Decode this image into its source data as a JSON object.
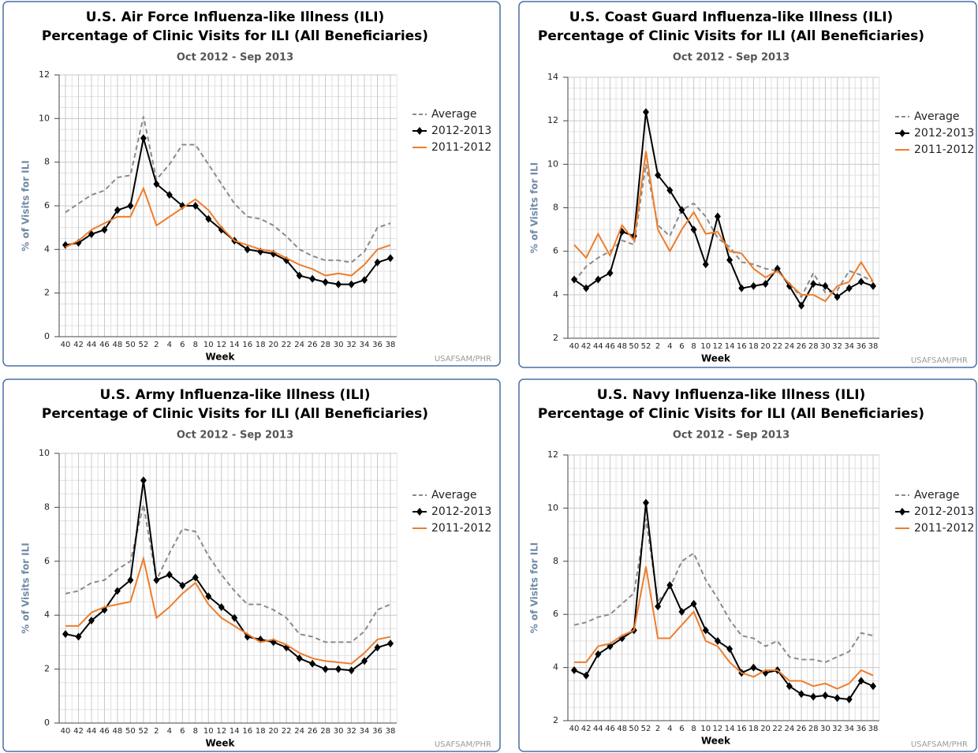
{
  "chart_data": [
    {
      "type": "line",
      "title": [
        "U.S. Air Force Influenza-like Illness (ILI)",
        "Percentage of Clinic Visits for ILI (All Beneficiaries)"
      ],
      "period": "Oct 2012 - Sep 2013",
      "x_label": "Week",
      "y_label": "% of Visits for ILI",
      "credit": "USAFSAM/PHR",
      "categories": [
        "40",
        "42",
        "44",
        "46",
        "48",
        "50",
        "52",
        "2",
        "4",
        "6",
        "8",
        "10",
        "12",
        "14",
        "16",
        "18",
        "20",
        "22",
        "24",
        "26",
        "28",
        "30",
        "32",
        "34",
        "36",
        "38"
      ],
      "ylim": [
        0,
        12
      ],
      "yticks": [
        0,
        2,
        4,
        6,
        8,
        10,
        12
      ],
      "grid": true,
      "series": [
        {
          "name": "Average",
          "color": "#8a8a8a",
          "style": "dashed",
          "values": [
            5.7,
            6.1,
            6.5,
            6.7,
            7.3,
            7.4,
            10.1,
            7.2,
            7.9,
            8.8,
            8.8,
            7.9,
            7.0,
            6.1,
            5.5,
            5.4,
            5.1,
            4.6,
            4.0,
            3.7,
            3.5,
            3.5,
            3.4,
            3.9,
            5.0,
            5.2
          ]
        },
        {
          "name": "2012-2013",
          "color": "#000000",
          "style": "solid",
          "marker": "diamond",
          "values": [
            4.2,
            4.3,
            4.7,
            4.9,
            5.8,
            6.0,
            9.1,
            7.0,
            6.5,
            6.0,
            6.0,
            5.4,
            4.9,
            4.4,
            4.0,
            3.9,
            3.8,
            3.5,
            2.8,
            2.65,
            2.5,
            2.4,
            2.4,
            2.6,
            3.4,
            3.6
          ]
        },
        {
          "name": "2011-2012",
          "color": "#ee7d2b",
          "style": "solid",
          "values": [
            4.1,
            4.4,
            4.9,
            5.2,
            5.5,
            5.5,
            6.8,
            5.1,
            5.5,
            5.9,
            6.3,
            5.8,
            5.0,
            4.4,
            4.2,
            4.0,
            3.9,
            3.6,
            3.3,
            3.1,
            2.8,
            2.9,
            2.8,
            3.3,
            4.0,
            4.2
          ]
        }
      ]
    },
    {
      "type": "line",
      "title": [
        "U.S. Coast Guard Influenza-like Illness (ILI)",
        "Percentage of Clinic Visits for ILI (All Beneficiaries)"
      ],
      "period": "Oct 2012 - Sep 2013",
      "x_label": "Week",
      "y_label": "% of Visits for ILI",
      "credit": "USAFSAM/PHR",
      "categories": [
        "40",
        "42",
        "44",
        "46",
        "48",
        "50",
        "52",
        "2",
        "4",
        "6",
        "8",
        "10",
        "12",
        "14",
        "16",
        "18",
        "20",
        "22",
        "24",
        "26",
        "28",
        "30",
        "32",
        "34",
        "36",
        "38"
      ],
      "ylim": [
        2,
        14
      ],
      "yticks": [
        2,
        4,
        6,
        8,
        10,
        12,
        14
      ],
      "grid": true,
      "series": [
        {
          "name": "Average",
          "color": "#8a8a8a",
          "style": "dashed",
          "values": [
            4.6,
            5.3,
            5.7,
            6.0,
            6.5,
            6.3,
            10.0,
            7.2,
            6.7,
            7.9,
            8.2,
            7.6,
            6.6,
            6.2,
            5.5,
            5.4,
            5.2,
            5.1,
            4.5,
            3.9,
            5.0,
            4.1,
            4.2,
            5.1,
            4.9,
            4.6
          ]
        },
        {
          "name": "2012-2013",
          "color": "#000000",
          "style": "solid",
          "marker": "diamond",
          "values": [
            4.7,
            4.3,
            4.7,
            5.0,
            6.9,
            6.7,
            12.4,
            9.5,
            8.8,
            7.9,
            7.0,
            5.4,
            7.6,
            5.6,
            4.3,
            4.4,
            4.5,
            5.2,
            4.4,
            3.5,
            4.5,
            4.4,
            3.9,
            4.3,
            4.6,
            4.4
          ]
        },
        {
          "name": "2011-2012",
          "color": "#ee7d2b",
          "style": "solid",
          "values": [
            6.3,
            5.7,
            6.8,
            5.8,
            7.2,
            6.5,
            10.6,
            7.0,
            6.0,
            7.0,
            7.8,
            6.8,
            6.9,
            6.0,
            5.9,
            5.2,
            4.8,
            5.1,
            4.5,
            4.0,
            4.0,
            3.7,
            4.4,
            4.6,
            5.5,
            4.6
          ]
        }
      ]
    },
    {
      "type": "line",
      "title": [
        "U.S. Army Influenza-like Illness (ILI)",
        "Percentage of Clinic Visits for ILI (All Beneficiaries)"
      ],
      "period": "Oct 2012 - Sep 2013",
      "x_label": "Week",
      "y_label": "% of Visits for ILI",
      "credit": "USAFSAM/PHR",
      "categories": [
        "40",
        "42",
        "44",
        "46",
        "48",
        "50",
        "52",
        "2",
        "4",
        "6",
        "8",
        "10",
        "12",
        "14",
        "16",
        "18",
        "20",
        "22",
        "24",
        "26",
        "28",
        "30",
        "32",
        "34",
        "36",
        "38"
      ],
      "ylim": [
        0,
        10
      ],
      "yticks": [
        0,
        2,
        4,
        6,
        8,
        10
      ],
      "grid": true,
      "series": [
        {
          "name": "Average",
          "color": "#8a8a8a",
          "style": "dashed",
          "values": [
            4.8,
            4.9,
            5.2,
            5.3,
            5.7,
            6.0,
            8.1,
            5.3,
            6.3,
            7.2,
            7.1,
            6.2,
            5.5,
            4.9,
            4.4,
            4.4,
            4.2,
            3.9,
            3.3,
            3.2,
            3.0,
            3.0,
            3.0,
            3.4,
            4.2,
            4.4
          ]
        },
        {
          "name": "2012-2013",
          "color": "#000000",
          "style": "solid",
          "marker": "diamond",
          "values": [
            3.3,
            3.2,
            3.8,
            4.2,
            4.9,
            5.3,
            9.0,
            5.3,
            5.5,
            5.1,
            5.4,
            4.7,
            4.3,
            3.9,
            3.2,
            3.1,
            3.0,
            2.8,
            2.4,
            2.2,
            2.0,
            2.0,
            1.95,
            2.3,
            2.8,
            2.95
          ]
        },
        {
          "name": "2011-2012",
          "color": "#ee7d2b",
          "style": "solid",
          "values": [
            3.6,
            3.6,
            4.1,
            4.3,
            4.4,
            4.5,
            6.1,
            3.9,
            4.3,
            4.8,
            5.2,
            4.4,
            3.9,
            3.6,
            3.3,
            3.0,
            3.1,
            2.9,
            2.6,
            2.4,
            2.3,
            2.25,
            2.2,
            2.6,
            3.1,
            3.2
          ]
        }
      ]
    },
    {
      "type": "line",
      "title": [
        "U.S. Navy Influenza-like Illness (ILI)",
        "Percentage of Clinic Visits for ILI (All Beneficiaries)"
      ],
      "period": "Oct 2012 - Sep 2013",
      "x_label": "Week",
      "y_label": "% of Visits for ILI",
      "credit": "USAFSAM/PHR",
      "categories": [
        "40",
        "42",
        "44",
        "46",
        "48",
        "50",
        "52",
        "2",
        "4",
        "6",
        "8",
        "10",
        "12",
        "14",
        "16",
        "18",
        "20",
        "22",
        "24",
        "26",
        "28",
        "30",
        "32",
        "34",
        "36",
        "38"
      ],
      "ylim": [
        2,
        12
      ],
      "yticks": [
        2,
        4,
        6,
        8,
        10,
        12
      ],
      "grid": true,
      "series": [
        {
          "name": "Average",
          "color": "#8a8a8a",
          "style": "dashed",
          "values": [
            5.6,
            5.7,
            5.9,
            6.0,
            6.4,
            6.8,
            9.6,
            6.5,
            7.0,
            8.0,
            8.3,
            7.3,
            6.6,
            5.8,
            5.2,
            5.1,
            4.8,
            5.0,
            4.4,
            4.3,
            4.3,
            4.2,
            4.4,
            4.6,
            5.3,
            5.2
          ]
        },
        {
          "name": "2012-2013",
          "color": "#000000",
          "style": "solid",
          "marker": "diamond",
          "values": [
            3.9,
            3.7,
            4.5,
            4.8,
            5.1,
            5.4,
            10.2,
            6.3,
            7.1,
            6.1,
            6.4,
            5.4,
            5.0,
            4.7,
            3.8,
            4.0,
            3.8,
            3.9,
            3.3,
            3.0,
            2.9,
            2.95,
            2.85,
            2.8,
            3.5,
            3.3
          ]
        },
        {
          "name": "2011-2012",
          "color": "#ee7d2b",
          "style": "solid",
          "values": [
            4.2,
            4.2,
            4.8,
            4.9,
            5.2,
            5.4,
            7.8,
            5.1,
            5.1,
            5.6,
            6.1,
            5.0,
            4.8,
            4.2,
            3.8,
            3.65,
            3.9,
            3.9,
            3.5,
            3.5,
            3.3,
            3.4,
            3.2,
            3.4,
            3.9,
            3.7
          ]
        }
      ]
    }
  ]
}
